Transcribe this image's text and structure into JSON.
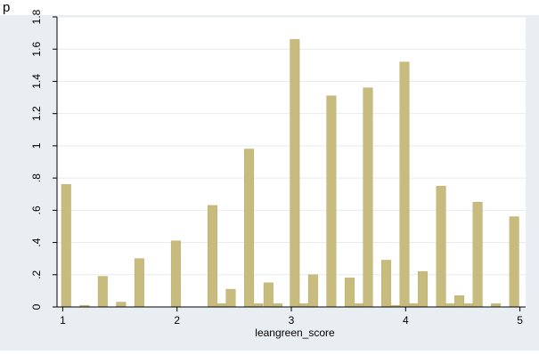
{
  "header": {
    "title_fragment": "p"
  },
  "chart_data": {
    "type": "bar",
    "title": "",
    "xlabel": "leangreen_score",
    "ylabel": "",
    "xlim": [
      0.95,
      5.05
    ],
    "ylim": [
      0,
      1.8
    ],
    "grid": {
      "y": true,
      "x": false
    },
    "legend": "none",
    "x_ticks": [
      1,
      2,
      3,
      4,
      5
    ],
    "y_ticks": [
      {
        "value": 0,
        "label": "0"
      },
      {
        "value": 0.2,
        "label": ".2"
      },
      {
        "value": 0.4,
        "label": ".4"
      },
      {
        "value": 0.6,
        "label": ".6"
      },
      {
        "value": 0.8,
        "label": ".8"
      },
      {
        "value": 1,
        "label": "1"
      },
      {
        "value": 1.2,
        "label": "1.2"
      },
      {
        "value": 1.4,
        "label": "1.4"
      },
      {
        "value": 1.6,
        "label": "1.6"
      },
      {
        "value": 1.8,
        "label": "1.8"
      }
    ],
    "bars": [
      {
        "x": 1.03,
        "value": 0.76
      },
      {
        "x": 1.19,
        "value": 0.01
      },
      {
        "x": 1.35,
        "value": 0.19
      },
      {
        "x": 1.51,
        "value": 0.03
      },
      {
        "x": 1.67,
        "value": 0.3
      },
      {
        "x": 1.99,
        "value": 0.41
      },
      {
        "x": 2.31,
        "value": 0.63
      },
      {
        "x": 2.39,
        "value": 0.02
      },
      {
        "x": 2.47,
        "value": 0.11
      },
      {
        "x": 2.63,
        "value": 0.98
      },
      {
        "x": 2.71,
        "value": 0.02
      },
      {
        "x": 2.8,
        "value": 0.15
      },
      {
        "x": 2.88,
        "value": 0.02
      },
      {
        "x": 3.03,
        "value": 1.66
      },
      {
        "x": 3.11,
        "value": 0.02
      },
      {
        "x": 3.19,
        "value": 0.2
      },
      {
        "x": 3.35,
        "value": 1.31
      },
      {
        "x": 3.51,
        "value": 0.18
      },
      {
        "x": 3.59,
        "value": 0.02
      },
      {
        "x": 3.67,
        "value": 1.36
      },
      {
        "x": 3.83,
        "value": 0.29
      },
      {
        "x": 3.91,
        "value": 0.01
      },
      {
        "x": 3.99,
        "value": 1.52
      },
      {
        "x": 4.07,
        "value": 0.02
      },
      {
        "x": 4.15,
        "value": 0.22
      },
      {
        "x": 4.31,
        "value": 0.75
      },
      {
        "x": 4.39,
        "value": 0.02
      },
      {
        "x": 4.47,
        "value": 0.07
      },
      {
        "x": 4.55,
        "value": 0.02
      },
      {
        "x": 4.63,
        "value": 0.65
      },
      {
        "x": 4.79,
        "value": 0.02
      },
      {
        "x": 4.95,
        "value": 0.56
      }
    ],
    "colors": {
      "bar_fill": "#c8bb7e",
      "bar_stroke": "#b9ab6c",
      "plot_bg": "#ffffff",
      "outer_bg": "#e9eef3",
      "grid": "#e7ebee",
      "axis": "#000000",
      "text": "#000000"
    }
  }
}
